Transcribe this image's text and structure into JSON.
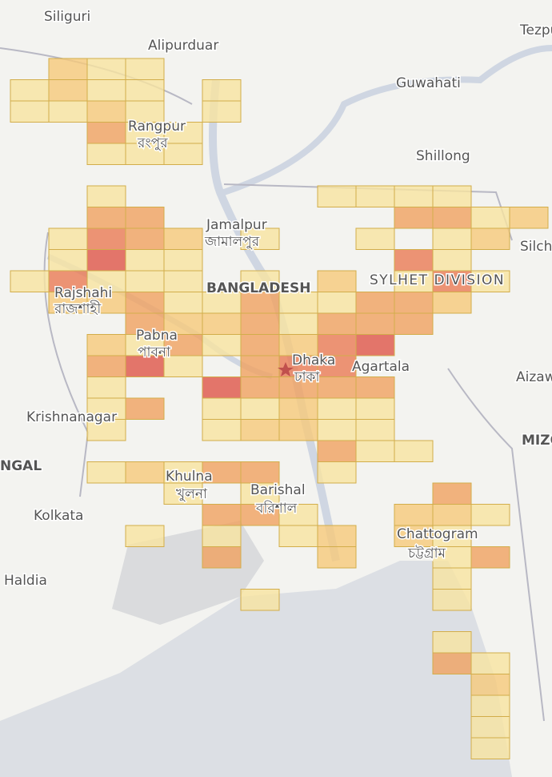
{
  "map": {
    "labels": [
      "Siliguri",
      "Alipurduar",
      "Tezpu",
      "Guwahati",
      "Rangpur",
      "রংপুর",
      "Shillong",
      "Jamalpur",
      "জামালপুর",
      "Silch",
      "SYLHET DIVISION",
      "BANGLADESH",
      "Rajshahi",
      "রাজশাহী",
      "Pabna",
      "পাবনা",
      "Dhaka",
      "ঢাকা",
      "Agartala",
      "Aizaw",
      "Krishnanagar",
      "MIZO",
      "NGAL",
      "Khulna",
      "খুলনা",
      "Barishal",
      "বরিশাল",
      "Kolkata",
      "Chattogram",
      "চট্টগ্রাম",
      "Haldia"
    ]
  }
}
